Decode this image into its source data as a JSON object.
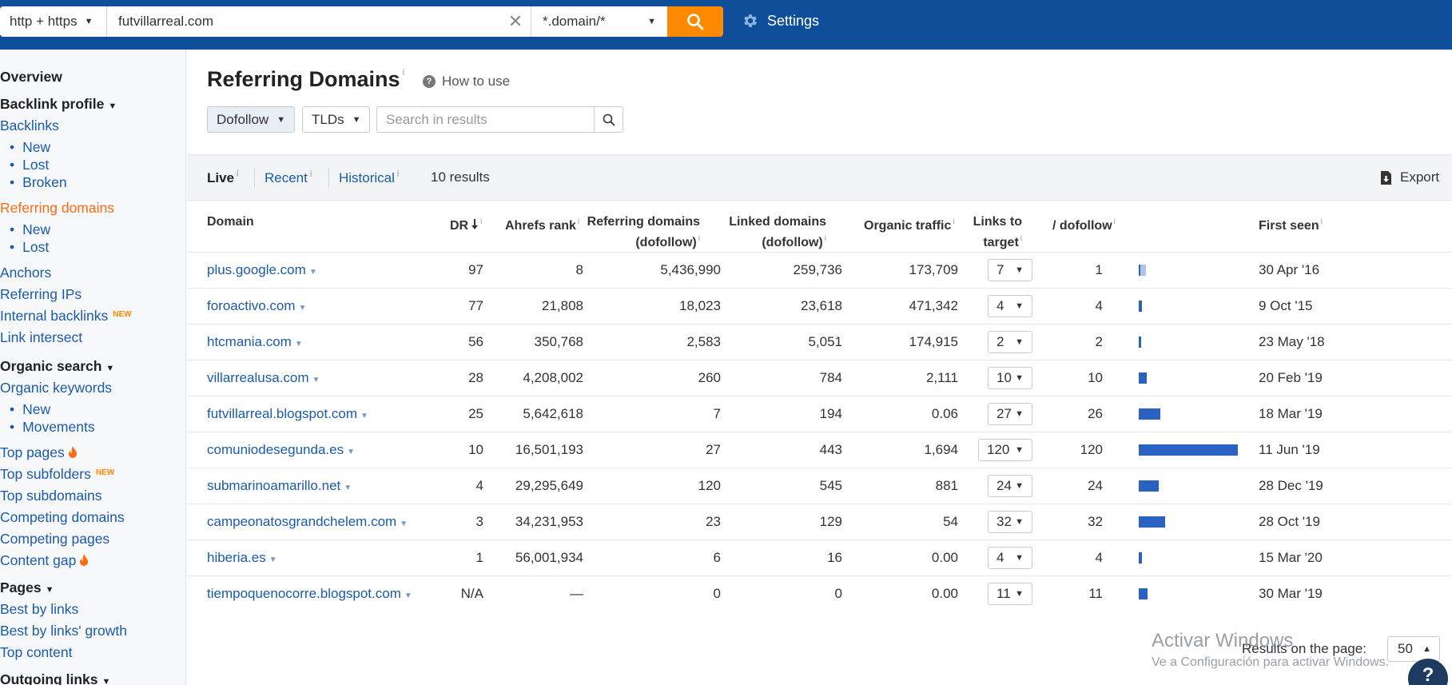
{
  "topbar": {
    "protocol": "http + https",
    "url": "futvillarreal.com",
    "mode": "*.domain/*",
    "settings_label": "Settings"
  },
  "sidebar": {
    "overview": "Overview",
    "backlink_profile": "Backlink profile",
    "backlinks": "Backlinks",
    "backlinks_new": "New",
    "backlinks_lost": "Lost",
    "backlinks_broken": "Broken",
    "referring_domains": "Referring domains",
    "rd_new": "New",
    "rd_lost": "Lost",
    "anchors": "Anchors",
    "referring_ips": "Referring IPs",
    "internal_backlinks": "Internal backlinks",
    "new_badge": "NEW",
    "link_intersect": "Link intersect",
    "organic_search": "Organic search",
    "organic_keywords": "Organic keywords",
    "ok_new": "New",
    "ok_movements": "Movements",
    "top_pages": "Top pages",
    "top_subfolders": "Top subfolders",
    "top_subdomains": "Top subdomains",
    "competing_domains": "Competing domains",
    "competing_pages": "Competing pages",
    "content_gap": "Content gap",
    "pages": "Pages",
    "best_by_links": "Best by links",
    "best_by_links_growth": "Best by links' growth",
    "top_content": "Top content",
    "outgoing_links": "Outgoing links"
  },
  "main": {
    "title": "Referring Domains",
    "info_mark": "i",
    "how_to_use": "How to use",
    "filters": {
      "dofollow": "Dofollow",
      "tlds": "TLDs",
      "search_placeholder": "Search in results"
    },
    "tabs": {
      "live": "Live",
      "recent": "Recent",
      "historical": "Historical"
    },
    "results_count": "10 results",
    "export_label": "Export",
    "columns": {
      "domain": "Domain",
      "dr": "DR",
      "ahrefs_rank": "Ahrefs rank",
      "ref_domains_1": "Referring domains",
      "ref_domains_2": "(dofollow)",
      "linked_domains_1": "Linked domains",
      "linked_domains_2": "(dofollow)",
      "organic_traffic": "Organic traffic",
      "links_to_1": "Links to",
      "links_to_2": "target",
      "dofollow": "/ dofollow",
      "first_seen": "First seen"
    },
    "rows": [
      {
        "domain": "plus.google.com",
        "dr": "97",
        "rank": "8",
        "ref": "5,436,990",
        "linked": "259,736",
        "traffic": "173,709",
        "links": "7",
        "dofollow": "1",
        "dofollow_share": 0.07,
        "first_seen": "30 Apr '16"
      },
      {
        "domain": "foroactivo.com",
        "dr": "77",
        "rank": "21,808",
        "ref": "18,023",
        "linked": "23,618",
        "traffic": "471,342",
        "links": "4",
        "dofollow": "4",
        "dofollow_share": 0.033,
        "first_seen": "9 Oct '15"
      },
      {
        "domain": "htcmania.com",
        "dr": "56",
        "rank": "350,768",
        "ref": "2,583",
        "linked": "5,051",
        "traffic": "174,915",
        "links": "2",
        "dofollow": "2",
        "dofollow_share": 0.017,
        "first_seen": "23 May '18"
      },
      {
        "domain": "villarrealusa.com",
        "dr": "28",
        "rank": "4,208,002",
        "ref": "260",
        "linked": "784",
        "traffic": "2,111",
        "links": "10",
        "dofollow": "10",
        "dofollow_share": 0.083,
        "first_seen": "20 Feb '19"
      },
      {
        "domain": "futvillarreal.blogspot.com",
        "dr": "25",
        "rank": "5,642,618",
        "ref": "7",
        "linked": "194",
        "traffic": "0.06",
        "links": "27",
        "dofollow": "26",
        "dofollow_share": 0.217,
        "first_seen": "18 Mar '19"
      },
      {
        "domain": "comuniodesegunda.es",
        "dr": "10",
        "rank": "16,501,193",
        "ref": "27",
        "linked": "443",
        "traffic": "1,694",
        "links": "120",
        "dofollow": "120",
        "dofollow_share": 1.0,
        "first_seen": "11 Jun '19"
      },
      {
        "domain": "submarinoamarillo.net",
        "dr": "4",
        "rank": "29,295,649",
        "ref": "120",
        "linked": "545",
        "traffic": "881",
        "links": "24",
        "dofollow": "24",
        "dofollow_share": 0.2,
        "first_seen": "28 Dec '19"
      },
      {
        "domain": "campeonatosgrandchelem.com",
        "dr": "3",
        "rank": "34,231,953",
        "ref": "23",
        "linked": "129",
        "traffic": "54",
        "links": "32",
        "dofollow": "32",
        "dofollow_share": 0.267,
        "first_seen": "28 Oct '19"
      },
      {
        "domain": "hiberia.es",
        "dr": "1",
        "rank": "56,001,934",
        "ref": "6",
        "linked": "16",
        "traffic": "0.00",
        "links": "4",
        "dofollow": "4",
        "dofollow_share": 0.033,
        "first_seen": "15 Mar '20"
      },
      {
        "domain": "tiempoquenocorre.blogspot.com",
        "dr": "N/A",
        "rank": "—",
        "ref": "0",
        "linked": "0",
        "traffic": "0.00",
        "links": "11",
        "dofollow": "11",
        "dofollow_share": 0.092,
        "first_seen": "30 Mar '19"
      }
    ],
    "results_per_page_label": "Results on the page:",
    "results_per_page": "50"
  },
  "overlay": {
    "watermark_1": "Activar Windows",
    "watermark_2": "Ve a Configuración para activar Windows.",
    "help": "?"
  },
  "colors": {
    "topbar": "#0f4f9a",
    "accent": "#ff8a00",
    "link": "#1a5bab",
    "active": "#ff6b0f",
    "bar": "#2b62c2"
  }
}
